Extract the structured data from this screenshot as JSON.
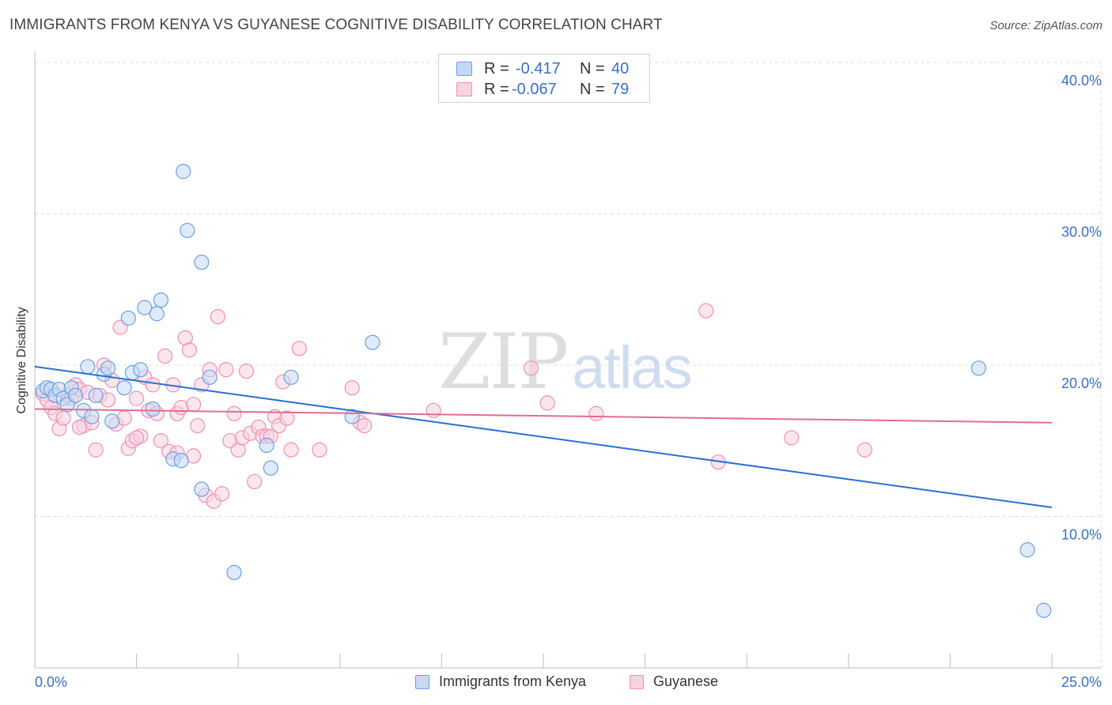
{
  "title": "IMMIGRANTS FROM KENYA VS GUYANESE COGNITIVE DISABILITY CORRELATION CHART",
  "source": "Source: ZipAtlas.com",
  "watermark": {
    "zip": "ZIP",
    "atlas": "atlas"
  },
  "colors": {
    "blue": "#6a9fe0",
    "blue_fill": "#c5d9f5",
    "blue_line": "#2a6fd0",
    "pink": "#ef90b0",
    "pink_fill": "#f9d2df",
    "pink_line": "#e26b95",
    "axis_text": "#3a6fc4",
    "grid": "#dcdcdc"
  },
  "legend": {
    "rows": [
      {
        "r_label": "R =",
        "r_value": "-0.417",
        "n_label": "N =",
        "n_value": "40"
      },
      {
        "r_label": "R =",
        "r_value": "-0.067",
        "n_label": "N =",
        "n_value": "79"
      }
    ]
  },
  "chart_data": {
    "type": "scatter",
    "title": "IMMIGRANTS FROM KENYA VS GUYANESE COGNITIVE DISABILITY CORRELATION CHART",
    "xlabel": "",
    "ylabel": "Cognitive Disability",
    "xlim": [
      0,
      25
    ],
    "ylim": [
      0,
      40
    ],
    "x_tick_labels": {
      "left": "0.0%",
      "right": "25.0%"
    },
    "y_ticks": [
      {
        "value": 10,
        "label": "10.0%"
      },
      {
        "value": 20,
        "label": "20.0%"
      },
      {
        "value": 30,
        "label": "30.0%"
      },
      {
        "value": 40,
        "label": "40.0%"
      }
    ],
    "grid": true,
    "series": [
      {
        "name": "Immigrants from Kenya",
        "color": "blue",
        "trend": {
          "x0": 0,
          "y0": 19.9,
          "x1": 25,
          "y1": 10.6
        },
        "points": [
          [
            0.2,
            18.3
          ],
          [
            0.3,
            18.5
          ],
          [
            0.4,
            18.4
          ],
          [
            0.5,
            18.0
          ],
          [
            0.6,
            18.4
          ],
          [
            0.7,
            17.8
          ],
          [
            0.8,
            17.4
          ],
          [
            0.9,
            18.5
          ],
          [
            1.0,
            18.0
          ],
          [
            1.2,
            17.0
          ],
          [
            1.3,
            19.9
          ],
          [
            1.4,
            16.6
          ],
          [
            1.5,
            18.0
          ],
          [
            1.7,
            19.4
          ],
          [
            1.8,
            19.8
          ],
          [
            1.9,
            16.3
          ],
          [
            2.2,
            18.5
          ],
          [
            2.3,
            23.1
          ],
          [
            2.4,
            19.5
          ],
          [
            2.6,
            19.7
          ],
          [
            2.7,
            23.8
          ],
          [
            2.9,
            17.1
          ],
          [
            3.0,
            23.4
          ],
          [
            3.1,
            24.3
          ],
          [
            3.4,
            13.8
          ],
          [
            3.6,
            13.7
          ],
          [
            3.65,
            32.8
          ],
          [
            3.75,
            28.9
          ],
          [
            4.1,
            26.8
          ],
          [
            4.1,
            11.8
          ],
          [
            4.3,
            19.2
          ],
          [
            4.9,
            6.3
          ],
          [
            5.7,
            14.7
          ],
          [
            5.8,
            13.2
          ],
          [
            6.3,
            19.2
          ],
          [
            7.8,
            16.6
          ],
          [
            8.3,
            21.5
          ],
          [
            23.2,
            19.8
          ],
          [
            24.4,
            7.8
          ],
          [
            24.8,
            3.8
          ]
        ]
      },
      {
        "name": "Guyanese",
        "color": "pink",
        "trend": {
          "x0": 0,
          "y0": 17.1,
          "x1": 25,
          "y1": 16.2
        },
        "points": [
          [
            0.2,
            18.1
          ],
          [
            0.3,
            17.7
          ],
          [
            0.4,
            17.2
          ],
          [
            0.5,
            16.8
          ],
          [
            0.6,
            15.8
          ],
          [
            0.7,
            16.5
          ],
          [
            0.8,
            18.0
          ],
          [
            0.9,
            17.8
          ],
          [
            1.0,
            18.7
          ],
          [
            1.1,
            18.4
          ],
          [
            1.2,
            16.0
          ],
          [
            1.3,
            18.2
          ],
          [
            1.4,
            16.2
          ],
          [
            1.5,
            14.4
          ],
          [
            1.6,
            18.0
          ],
          [
            1.7,
            20.0
          ],
          [
            1.8,
            17.7
          ],
          [
            1.9,
            19.0
          ],
          [
            2.0,
            16.1
          ],
          [
            2.1,
            22.5
          ],
          [
            2.2,
            16.5
          ],
          [
            2.3,
            14.5
          ],
          [
            2.4,
            15.0
          ],
          [
            2.5,
            17.8
          ],
          [
            2.6,
            15.3
          ],
          [
            2.7,
            19.2
          ],
          [
            2.8,
            17.0
          ],
          [
            2.9,
            18.7
          ],
          [
            3.0,
            16.8
          ],
          [
            3.1,
            15.0
          ],
          [
            3.2,
            20.6
          ],
          [
            3.3,
            14.3
          ],
          [
            3.4,
            18.7
          ],
          [
            3.5,
            16.8
          ],
          [
            3.6,
            17.2
          ],
          [
            3.7,
            21.8
          ],
          [
            3.8,
            21.0
          ],
          [
            3.9,
            14.0
          ],
          [
            4.0,
            16.0
          ],
          [
            4.1,
            18.7
          ],
          [
            4.2,
            11.4
          ],
          [
            4.3,
            19.7
          ],
          [
            4.4,
            11.0
          ],
          [
            4.5,
            23.2
          ],
          [
            4.6,
            11.5
          ],
          [
            4.7,
            19.7
          ],
          [
            4.8,
            15.0
          ],
          [
            4.9,
            16.8
          ],
          [
            5.0,
            14.4
          ],
          [
            5.1,
            15.2
          ],
          [
            5.2,
            19.6
          ],
          [
            5.3,
            15.5
          ],
          [
            5.4,
            12.3
          ],
          [
            5.5,
            15.9
          ],
          [
            5.6,
            15.3
          ],
          [
            5.7,
            15.3
          ],
          [
            5.8,
            15.3
          ],
          [
            5.9,
            16.6
          ],
          [
            6.0,
            16.0
          ],
          [
            6.1,
            18.9
          ],
          [
            6.2,
            16.5
          ],
          [
            6.3,
            14.4
          ],
          [
            6.5,
            21.1
          ],
          [
            7.0,
            14.4
          ],
          [
            7.8,
            18.5
          ],
          [
            8.0,
            16.2
          ],
          [
            8.1,
            16.0
          ],
          [
            9.8,
            17.0
          ],
          [
            12.2,
            19.8
          ],
          [
            12.6,
            17.5
          ],
          [
            13.8,
            16.8
          ],
          [
            16.5,
            23.6
          ],
          [
            16.8,
            13.6
          ],
          [
            18.6,
            15.2
          ],
          [
            20.4,
            14.4
          ],
          [
            3.9,
            17.4
          ],
          [
            3.5,
            14.2
          ],
          [
            2.5,
            15.2
          ],
          [
            1.1,
            15.9
          ]
        ]
      }
    ]
  }
}
